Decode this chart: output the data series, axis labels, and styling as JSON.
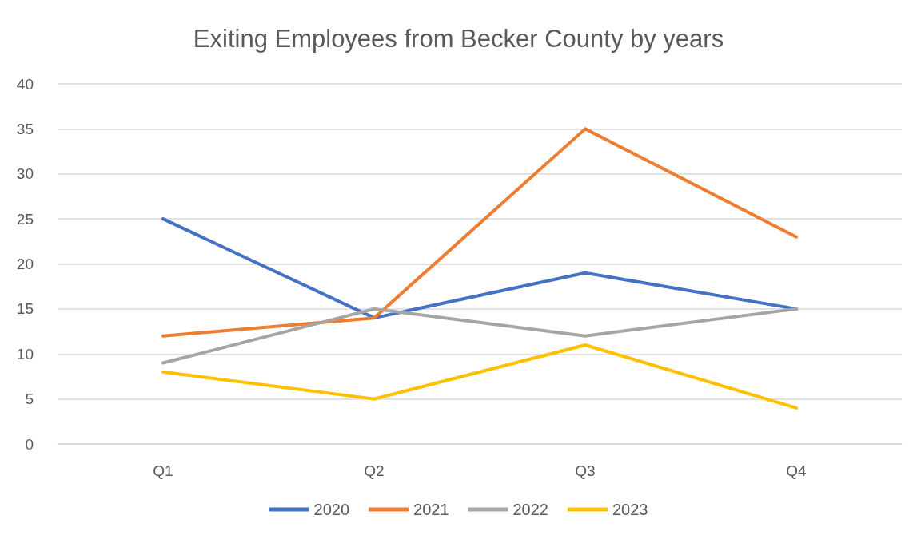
{
  "chart_data": {
    "type": "line",
    "title": "Exiting Employees from Becker County by years",
    "categories": [
      "Q1",
      "Q2",
      "Q3",
      "Q4"
    ],
    "series": [
      {
        "name": "2020",
        "color": "#4472c4",
        "values": [
          25,
          14,
          19,
          15
        ]
      },
      {
        "name": "2021",
        "color": "#ed7d31",
        "values": [
          12,
          14,
          35,
          23
        ]
      },
      {
        "name": "2022",
        "color": "#a5a5a5",
        "values": [
          9,
          15,
          12,
          15
        ]
      },
      {
        "name": "2023",
        "color": "#ffc000",
        "values": [
          8,
          5,
          11,
          4
        ]
      }
    ],
    "ylim": [
      0,
      40
    ],
    "yticks": [
      0,
      5,
      10,
      15,
      20,
      25,
      30,
      35,
      40
    ],
    "grid": "y",
    "legend": "bottom",
    "marker": "none",
    "line_style": "solid"
  }
}
